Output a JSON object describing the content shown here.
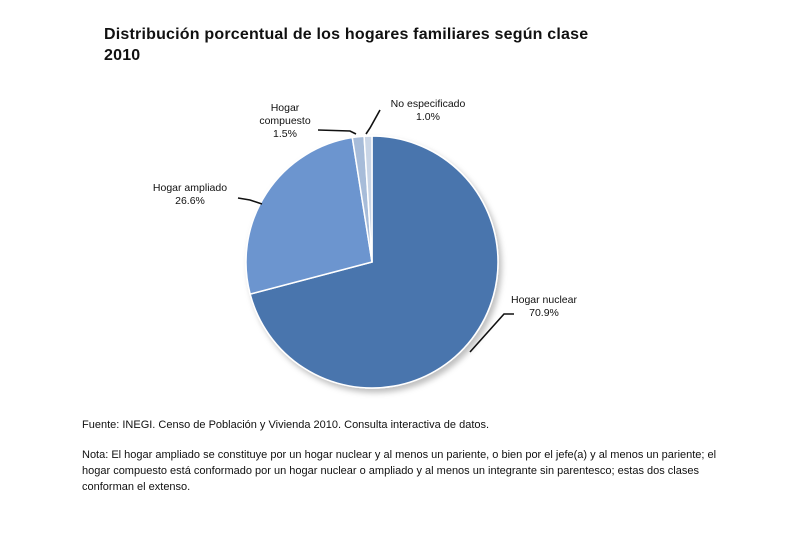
{
  "chart_data": {
    "type": "pie",
    "title": "Distribución porcentual de los hogares familiares según clase",
    "subtitle": "2010",
    "slices": [
      {
        "name": "Hogar nuclear",
        "value": 70.9,
        "label": "70.9%",
        "color": "#4a75ad"
      },
      {
        "name": "Hogar ampliado",
        "value": 26.6,
        "label": "26.6%",
        "color": "#6c95cf"
      },
      {
        "name": "Hogar compuesto",
        "value": 1.5,
        "label": "1.5%",
        "color": "#a7bcd9"
      },
      {
        "name": "No especificado",
        "value": 1.0,
        "label": "1.0%",
        "color": "#c9d5e6"
      }
    ],
    "legend": "none"
  },
  "footer": {
    "source": "Fuente: INEGI. Censo de Población y Vivienda 2010. Consulta interactiva de datos.",
    "note": "Nota: El hogar ampliado se constituye por un hogar nuclear y al menos un pariente, o bien por el jefe(a) y al menos un pariente; el hogar compuesto está conformado por un hogar nuclear o ampliado y al menos un integrante sin parentesco; estas dos clases conforman el extenso."
  }
}
